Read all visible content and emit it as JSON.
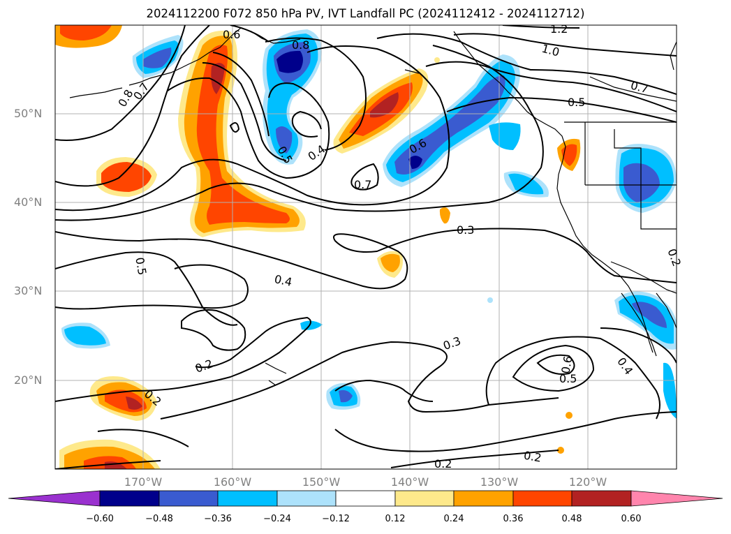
{
  "title": "2024112200 F072 850 hPa PV, IVT Landfall PC (2024112412 - 2024112712)",
  "lat_ticks": [
    "50°N",
    "40°N",
    "30°N",
    "20°N"
  ],
  "lon_ticks": [
    "170°W",
    "160°W",
    "150°W",
    "140°W",
    "130°W",
    "120°W"
  ],
  "colorbar": {
    "ticks": [
      "−0.60",
      "−0.48",
      "−0.36",
      "−0.24",
      "−0.12",
      "0.12",
      "0.24",
      "0.36",
      "0.48",
      "0.60"
    ],
    "colors": [
      "#9a31cf",
      "#00008b",
      "#3a5bd0",
      "#00bfff",
      "#ade2fb",
      "#ffffff",
      "#fee98b",
      "#ffa200",
      "#ff4500",
      "#b22222",
      "#ff85ad"
    ]
  },
  "contour_labels": [
    "0.8",
    "0.7",
    "0.8",
    "1.2",
    "1.0",
    "0.7",
    "0.5",
    "0.6",
    "0.5",
    "0.4",
    "0.6",
    "0.7",
    "0.3",
    "0.5",
    "0.4",
    "0.3",
    "0.2",
    "0.2",
    "0.6",
    "0.5",
    "0.4",
    "0.2",
    "0.2",
    "0.2"
  ]
}
